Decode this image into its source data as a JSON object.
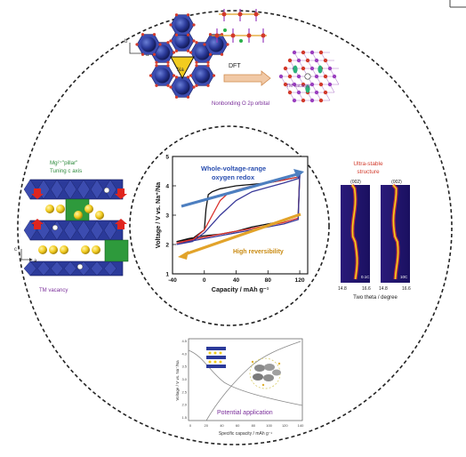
{
  "top_panel": {
    "axis_b": "b",
    "axis_a": "a",
    "ion_label": "Na",
    "arrow_label": "DFT",
    "vacancy_label": "TM vacancy",
    "orbital_label": "Nonbonding O 2p orbital"
  },
  "left_panel": {
    "title_line1": "Mg²⁺\"pillar\"",
    "title_line2": "Tuning c axis",
    "axis_c": "c",
    "axis_a": "a",
    "vacancy_label": "TM vacancy"
  },
  "right_panel": {
    "title_line1": "Ultra-stable",
    "title_line2": "structure",
    "peak_left": "(002)",
    "peak_right": "(002)",
    "rate_left": "0.1C",
    "rate_right": "10C",
    "tick_left_min": "14.8",
    "tick_left_max": "16.6",
    "tick_right_min": "14.8",
    "tick_right_max": "16.6",
    "xlabel": "Two theta / degree"
  },
  "bottom_panel": {
    "ylabel": "Voltage / V vs. Na⁺/Na",
    "xlabel": "Specific capacity / mAh g⁻¹",
    "caption": "Potential application",
    "xticks": [
      "0",
      "20",
      "40",
      "60",
      "80",
      "100",
      "120",
      "140"
    ],
    "yticks": [
      "4.5",
      "4.0",
      "3.5",
      "3.0",
      "2.5",
      "2.0",
      "1.5"
    ]
  },
  "chart_data": {
    "type": "line",
    "title": "",
    "xlabel": "Capacity / mAh g⁻¹",
    "ylabel": "Voltage / V vs. Na⁺/Na",
    "xlim": [
      -40,
      130
    ],
    "ylim": [
      1,
      5
    ],
    "xticks": [
      -40,
      0,
      40,
      80,
      120
    ],
    "yticks": [
      1,
      2,
      3,
      4,
      5
    ],
    "annotations": [
      "Whole-voltage-range",
      "oxygen redox",
      "High reversibility"
    ],
    "series": [
      {
        "color": "#111111",
        "x": [
          -35,
          -15,
          0,
          2,
          5,
          10,
          20,
          40,
          60,
          80,
          100,
          118,
          120,
          118,
          100,
          80,
          60,
          40,
          20,
          0,
          -20,
          -35
        ],
        "y": [
          2.1,
          2.2,
          2.5,
          3.2,
          3.7,
          3.8,
          3.9,
          4.0,
          4.05,
          4.1,
          4.2,
          4.3,
          4.45,
          3.0,
          2.8,
          2.7,
          2.6,
          2.45,
          2.35,
          2.3,
          2.2,
          2.1
        ]
      },
      {
        "color": "#d9302c",
        "x": [
          -35,
          -15,
          0,
          10,
          20,
          30,
          40,
          60,
          80,
          100,
          118,
          120,
          118,
          100,
          80,
          60,
          40,
          20,
          0,
          -20,
          -35
        ],
        "y": [
          2.05,
          2.15,
          2.5,
          3.0,
          3.5,
          3.75,
          3.85,
          4.0,
          4.1,
          4.2,
          4.3,
          4.45,
          2.9,
          2.75,
          2.65,
          2.55,
          2.45,
          2.35,
          2.25,
          2.15,
          2.05
        ]
      },
      {
        "color": "#3a3a9a",
        "x": [
          -35,
          -15,
          0,
          20,
          40,
          60,
          80,
          100,
          118,
          120,
          118,
          100,
          80,
          60,
          40,
          20,
          0,
          -20,
          -35
        ],
        "y": [
          2.0,
          2.1,
          2.4,
          3.0,
          3.5,
          3.8,
          3.95,
          4.1,
          4.25,
          4.4,
          2.85,
          2.7,
          2.6,
          2.5,
          2.4,
          2.3,
          2.2,
          2.1,
          2.0
        ]
      }
    ]
  },
  "colors": {
    "octahedra": "#2b3a9a",
    "sodium": "#f2cc1f",
    "mg_prism": "#2e9a3c",
    "arrow_blue": "#4d7fc0",
    "arrow_gold": "#e2a32a",
    "text_green": "#2d8a3c",
    "text_red": "#d23a2b",
    "text_purple": "#7a2e9a",
    "text_blue": "#2a4fb0"
  }
}
